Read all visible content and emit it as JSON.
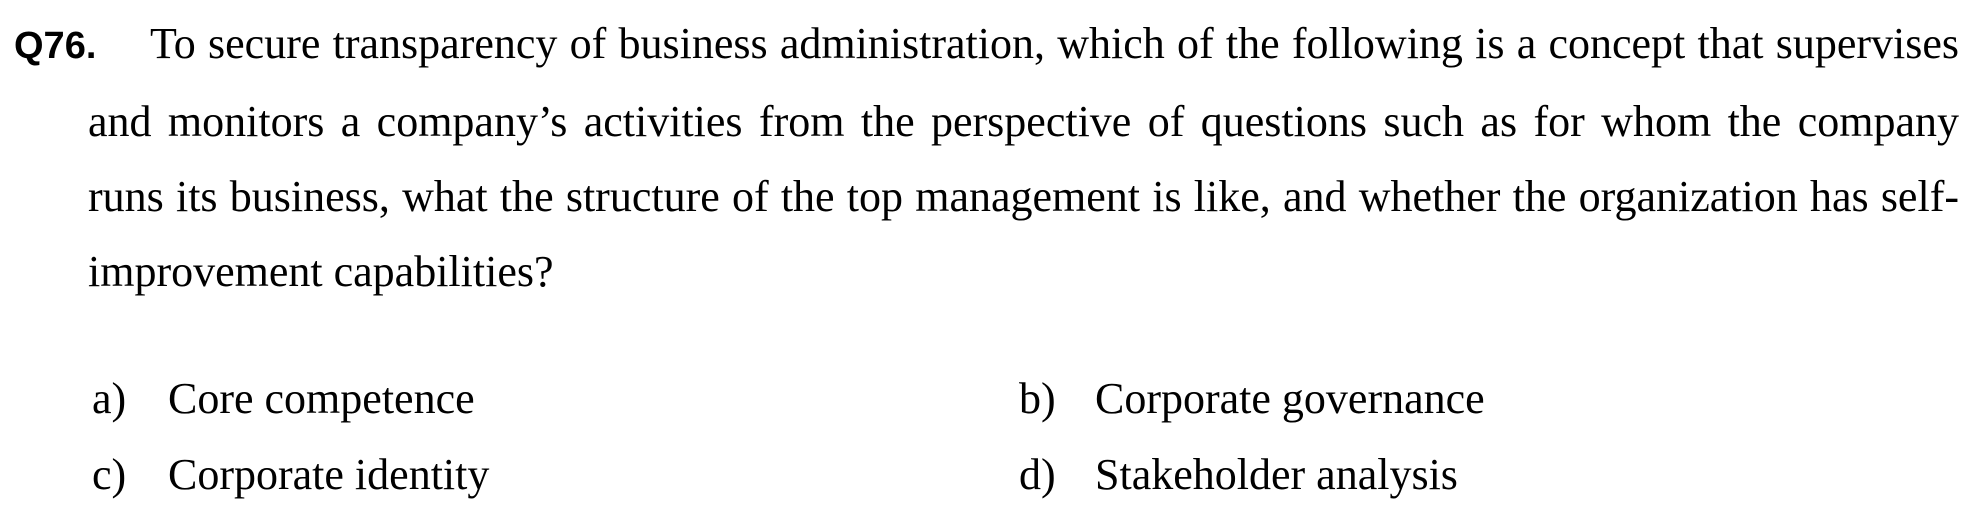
{
  "question": {
    "number": "Q76.",
    "text": "To secure transparency of business administration, which of the following is a concept that supervises and monitors a company’s activities from the perspective of questions such as for whom the company runs its business, what the structure of the top management is like, and whether the organization has self-improvement capabilities?"
  },
  "options": [
    {
      "letter": "a)",
      "text": "Core competence"
    },
    {
      "letter": "b)",
      "text": "Corporate governance"
    },
    {
      "letter": "c)",
      "text": "Corporate identity"
    },
    {
      "letter": "d)",
      "text": "Stakeholder analysis"
    }
  ]
}
